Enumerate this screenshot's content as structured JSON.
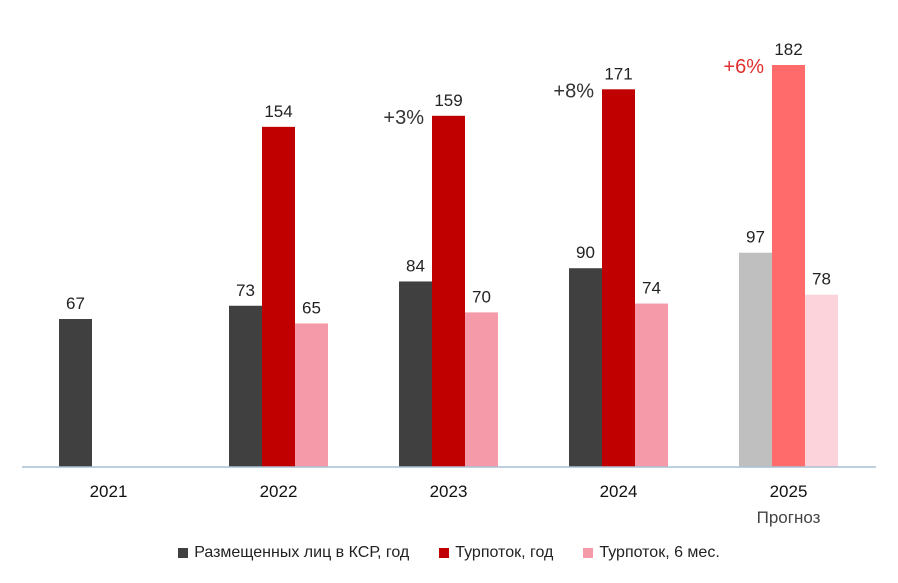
{
  "chart_data": {
    "type": "bar",
    "title": "",
    "xlabel": "",
    "ylabel": "",
    "ylim": [
      0,
      182
    ],
    "categories": [
      "2021",
      "2022",
      "2023",
      "2024",
      "2025"
    ],
    "category_sublabels": [
      "",
      "",
      "",
      "",
      "Прогноз"
    ],
    "series": [
      {
        "name": "Размещенных лиц в КСР, год",
        "values": [
          67,
          73,
          84,
          90,
          97
        ],
        "color": "#404040",
        "forecast_color": "#bfbfbf"
      },
      {
        "name": "Турпоток, год",
        "values": [
          null,
          154,
          159,
          171,
          182
        ],
        "color": "#c00000",
        "forecast_color": "#ff6b6b"
      },
      {
        "name": "Турпоток, 6 мес.",
        "values": [
          null,
          65,
          70,
          74,
          78
        ],
        "color": "#f59aa8",
        "forecast_color": "#fcd3da"
      }
    ],
    "forecast_category_index": 4,
    "annotations": [
      {
        "category": "2023",
        "text": "+3%",
        "color": "#333333"
      },
      {
        "category": "2024",
        "text": "+8%",
        "color": "#333333"
      },
      {
        "category": "2025",
        "text": "+6%",
        "color": "#e03030"
      }
    ],
    "legend_position": "bottom",
    "grid": false
  }
}
